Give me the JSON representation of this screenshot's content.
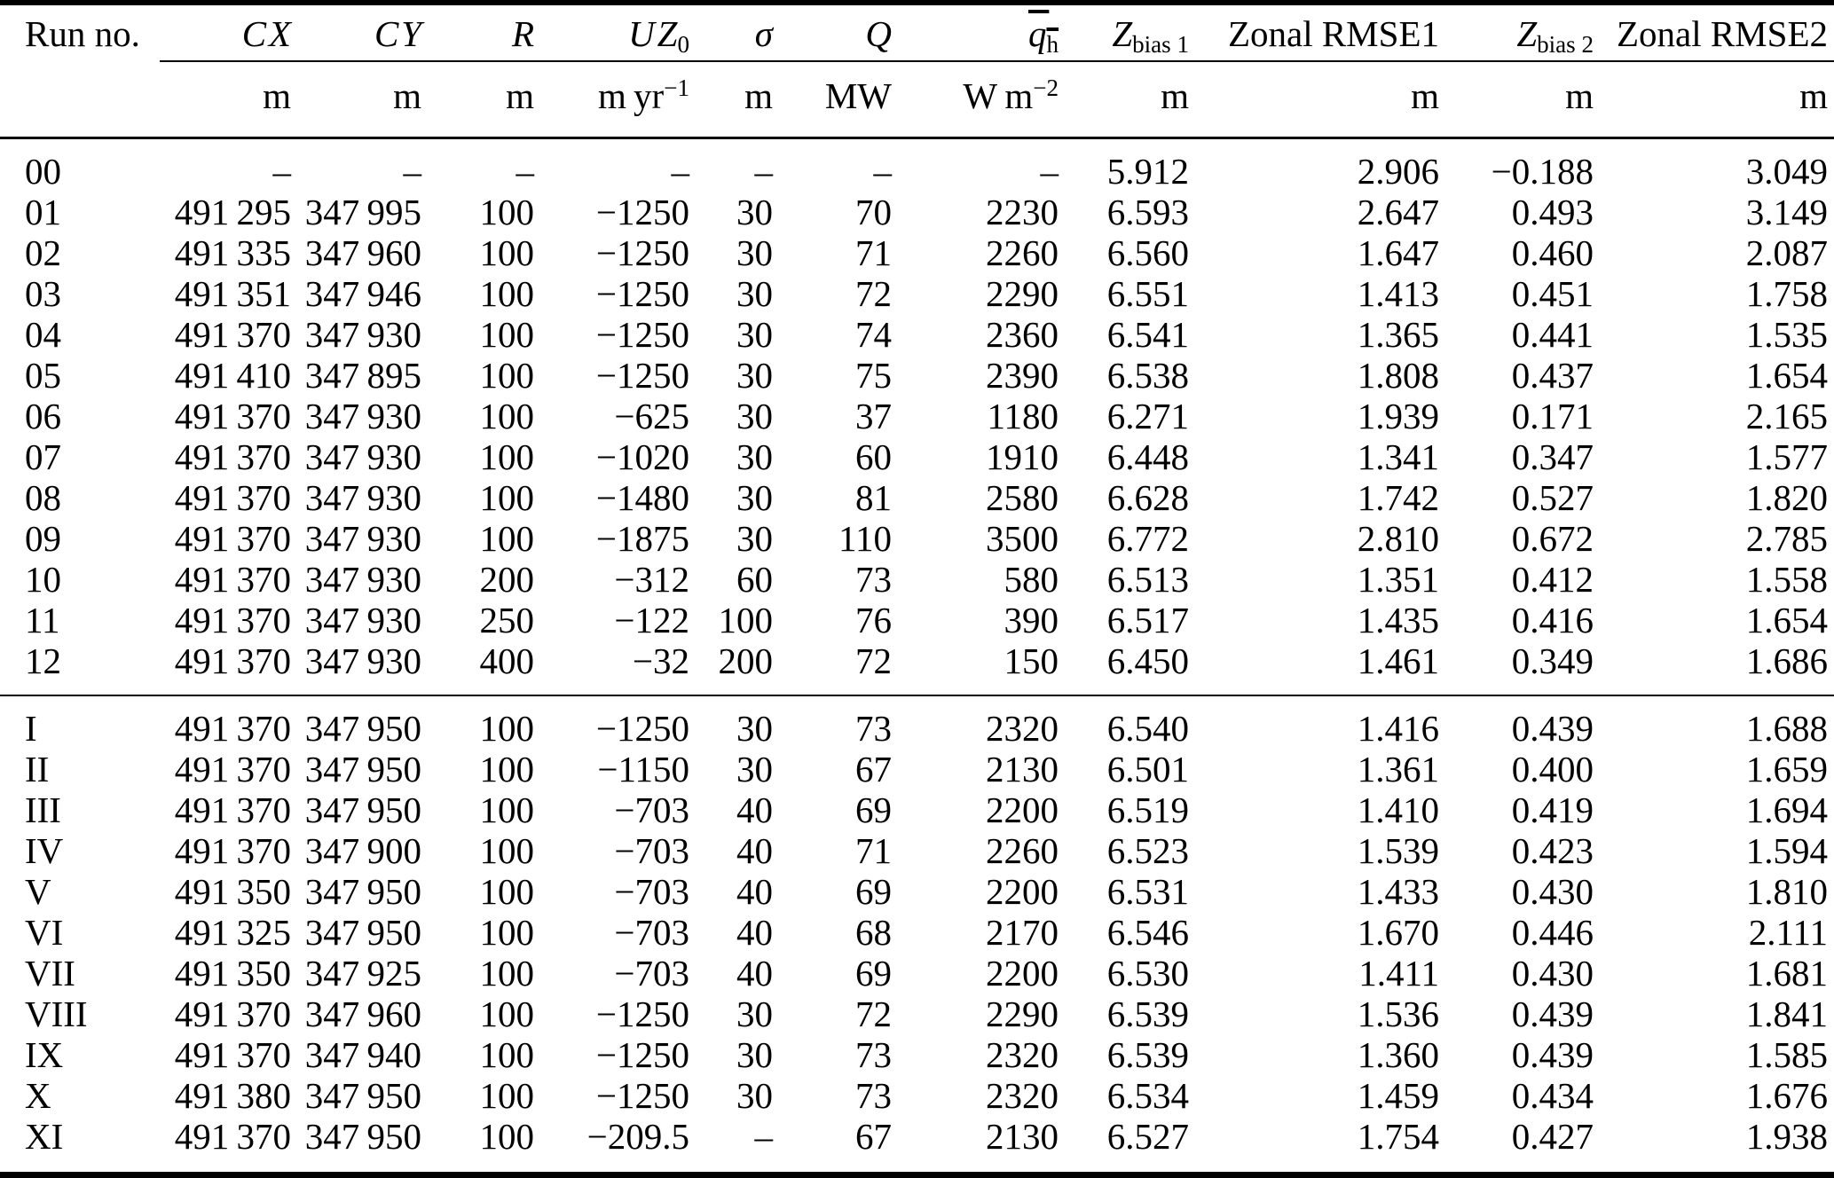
{
  "colors": {
    "background": "#ffffff",
    "text": "#000000",
    "rule": "#000000"
  },
  "table": {
    "columns": [
      {
        "id": "run_no",
        "align": "left",
        "header": [
          {
            "t": "Run no."
          }
        ],
        "unit": []
      },
      {
        "id": "cx",
        "align": "right",
        "header": [
          {
            "t": "CX",
            "i": true
          }
        ],
        "unit": [
          {
            "t": "m"
          }
        ]
      },
      {
        "id": "cy",
        "align": "right",
        "header": [
          {
            "t": "CY",
            "i": true
          }
        ],
        "unit": [
          {
            "t": "m"
          }
        ]
      },
      {
        "id": "r",
        "align": "right",
        "header": [
          {
            "t": "R",
            "i": true
          }
        ],
        "unit": [
          {
            "t": "m"
          }
        ]
      },
      {
        "id": "uz0",
        "align": "right",
        "header": [
          {
            "t": "UZ",
            "i": true
          },
          {
            "t": "0",
            "sub": true
          }
        ],
        "unit": [
          {
            "t": "m yr"
          },
          {
            "t": "−1",
            "sup": true
          }
        ]
      },
      {
        "id": "sigma",
        "align": "right",
        "header": [
          {
            "t": "σ",
            "i": true
          }
        ],
        "unit": [
          {
            "t": "m"
          }
        ]
      },
      {
        "id": "q",
        "align": "right",
        "header": [
          {
            "t": "Q",
            "i": true
          }
        ],
        "unit": [
          {
            "t": "MW"
          }
        ]
      },
      {
        "id": "qh",
        "align": "right",
        "header": [
          {
            "t": "q",
            "i": true,
            "over": true
          },
          {
            "t": "h",
            "sub": true,
            "over": true
          }
        ],
        "unit": [
          {
            "t": "W m"
          },
          {
            "t": "−2",
            "sup": true
          }
        ]
      },
      {
        "id": "zbias1",
        "align": "right",
        "header": [
          {
            "t": "Z",
            "i": true
          },
          {
            "t": "bias 1",
            "sub": true
          }
        ],
        "unit": [
          {
            "t": "m"
          }
        ]
      },
      {
        "id": "zonal_rmse1",
        "align": "right",
        "header": [
          {
            "t": "Zonal RMSE1"
          }
        ],
        "unit": [
          {
            "t": "m"
          }
        ]
      },
      {
        "id": "zbias2",
        "align": "right",
        "header": [
          {
            "t": "Z",
            "i": true
          },
          {
            "t": "bias 2",
            "sub": true
          }
        ],
        "unit": [
          {
            "t": "m"
          }
        ]
      },
      {
        "id": "zonal_rmse2",
        "align": "right",
        "header": [
          {
            "t": "Zonal RMSE2"
          }
        ],
        "unit": [
          {
            "t": "m"
          }
        ]
      }
    ],
    "groups": [
      {
        "name": "numbered-runs",
        "rows": [
          [
            "00",
            "–",
            "–",
            "–",
            "–",
            "–",
            "–",
            "–",
            "5.912",
            "2.906",
            "−0.188",
            "3.049"
          ],
          [
            "01",
            "491 295",
            "347 995",
            "100",
            "−1250",
            "30",
            "70",
            "2230",
            "6.593",
            "2.647",
            "0.493",
            "3.149"
          ],
          [
            "02",
            "491 335",
            "347 960",
            "100",
            "−1250",
            "30",
            "71",
            "2260",
            "6.560",
            "1.647",
            "0.460",
            "2.087"
          ],
          [
            "03",
            "491 351",
            "347 946",
            "100",
            "−1250",
            "30",
            "72",
            "2290",
            "6.551",
            "1.413",
            "0.451",
            "1.758"
          ],
          [
            "04",
            "491 370",
            "347 930",
            "100",
            "−1250",
            "30",
            "74",
            "2360",
            "6.541",
            "1.365",
            "0.441",
            "1.535"
          ],
          [
            "05",
            "491 410",
            "347 895",
            "100",
            "−1250",
            "30",
            "75",
            "2390",
            "6.538",
            "1.808",
            "0.437",
            "1.654"
          ],
          [
            "06",
            "491 370",
            "347 930",
            "100",
            "−625",
            "30",
            "37",
            "1180",
            "6.271",
            "1.939",
            "0.171",
            "2.165"
          ],
          [
            "07",
            "491 370",
            "347 930",
            "100",
            "−1020",
            "30",
            "60",
            "1910",
            "6.448",
            "1.341",
            "0.347",
            "1.577"
          ],
          [
            "08",
            "491 370",
            "347 930",
            "100",
            "−1480",
            "30",
            "81",
            "2580",
            "6.628",
            "1.742",
            "0.527",
            "1.820"
          ],
          [
            "09",
            "491 370",
            "347 930",
            "100",
            "−1875",
            "30",
            "110",
            "3500",
            "6.772",
            "2.810",
            "0.672",
            "2.785"
          ],
          [
            "10",
            "491 370",
            "347 930",
            "200",
            "−312",
            "60",
            "73",
            "580",
            "6.513",
            "1.351",
            "0.412",
            "1.558"
          ],
          [
            "11",
            "491 370",
            "347 930",
            "250",
            "−122",
            "100",
            "76",
            "390",
            "6.517",
            "1.435",
            "0.416",
            "1.654"
          ],
          [
            "12",
            "491 370",
            "347 930",
            "400",
            "−32",
            "200",
            "72",
            "150",
            "6.450",
            "1.461",
            "0.349",
            "1.686"
          ]
        ]
      },
      {
        "name": "roman-runs",
        "rows": [
          [
            "I",
            "491 370",
            "347 950",
            "100",
            "−1250",
            "30",
            "73",
            "2320",
            "6.540",
            "1.416",
            "0.439",
            "1.688"
          ],
          [
            "II",
            "491 370",
            "347 950",
            "100",
            "−1150",
            "30",
            "67",
            "2130",
            "6.501",
            "1.361",
            "0.400",
            "1.659"
          ],
          [
            "III",
            "491 370",
            "347 950",
            "100",
            "−703",
            "40",
            "69",
            "2200",
            "6.519",
            "1.410",
            "0.419",
            "1.694"
          ],
          [
            "IV",
            "491 370",
            "347 900",
            "100",
            "−703",
            "40",
            "71",
            "2260",
            "6.523",
            "1.539",
            "0.423",
            "1.594"
          ],
          [
            "V",
            "491 350",
            "347 950",
            "100",
            "−703",
            "40",
            "69",
            "2200",
            "6.531",
            "1.433",
            "0.430",
            "1.810"
          ],
          [
            "VI",
            "491 325",
            "347 950",
            "100",
            "−703",
            "40",
            "68",
            "2170",
            "6.546",
            "1.670",
            "0.446",
            "2.111"
          ],
          [
            "VII",
            "491 350",
            "347 925",
            "100",
            "−703",
            "40",
            "69",
            "2200",
            "6.530",
            "1.411",
            "0.430",
            "1.681"
          ],
          [
            "VIII",
            "491 370",
            "347 960",
            "100",
            "−1250",
            "30",
            "72",
            "2290",
            "6.539",
            "1.536",
            "0.439",
            "1.841"
          ],
          [
            "IX",
            "491 370",
            "347 940",
            "100",
            "−1250",
            "30",
            "73",
            "2320",
            "6.539",
            "1.360",
            "0.439",
            "1.585"
          ],
          [
            "X",
            "491 380",
            "347 950",
            "100",
            "−1250",
            "30",
            "73",
            "2320",
            "6.534",
            "1.459",
            "0.434",
            "1.676"
          ],
          [
            "XI",
            "491 370",
            "347 950",
            "100",
            "−209.5",
            "–",
            "67",
            "2130",
            "6.527",
            "1.754",
            "0.427",
            "1.938"
          ]
        ]
      }
    ]
  }
}
